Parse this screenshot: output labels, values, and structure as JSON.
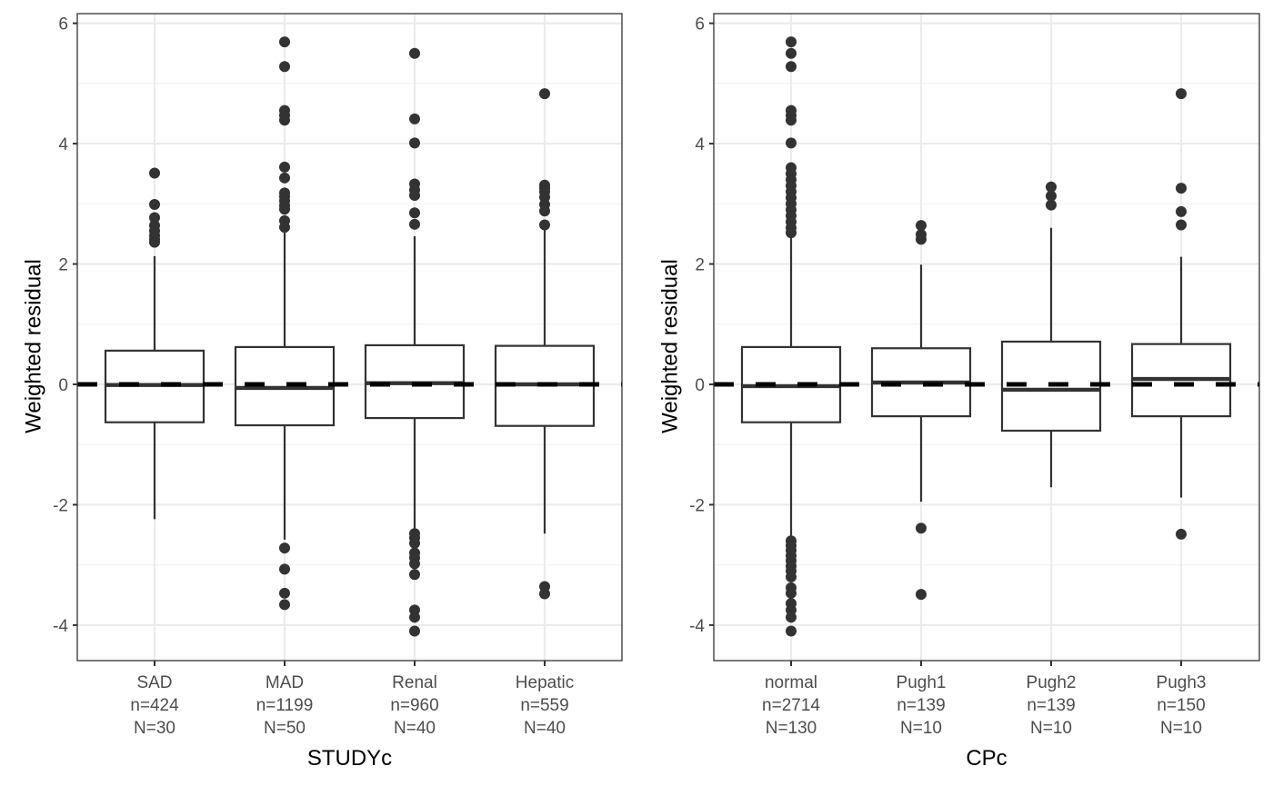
{
  "chart_data": [
    {
      "type": "box",
      "title": "",
      "xlabel": "STUDYc",
      "ylabel": "Weighted residual",
      "ylim": [
        -4.59,
        6.16
      ],
      "yticks": [
        -4,
        -2,
        0,
        2,
        4,
        6
      ],
      "ytick_labels": [
        "-4",
        "-2",
        "0",
        "2",
        "4",
        "6"
      ],
      "grid": true,
      "reference_line": {
        "y": 0,
        "style": "dashed"
      },
      "categories": [
        {
          "label": "SAD",
          "n_label": "n=424",
          "N_label": "N=30",
          "q1": -0.63,
          "median": -0.01,
          "q3": 0.56,
          "whisker_low": -2.24,
          "whisker_high": 2.13,
          "outliers": [
            3.51,
            2.99,
            2.77,
            2.64,
            2.55,
            2.47,
            2.41,
            2.36
          ]
        },
        {
          "label": "MAD",
          "n_label": "n=1199",
          "N_label": "N=50",
          "q1": -0.68,
          "median": -0.06,
          "q3": 0.62,
          "whisker_low": -2.58,
          "whisker_high": 2.53,
          "outliers": [
            5.69,
            5.28,
            4.55,
            4.47,
            4.39,
            3.61,
            3.43,
            3.18,
            3.12,
            3.05,
            2.97,
            2.91,
            2.72,
            2.61,
            -2.72,
            -3.07,
            -3.47,
            -3.66
          ]
        },
        {
          "label": "Renal",
          "n_label": "n=960",
          "N_label": "N=40",
          "q1": -0.56,
          "median": 0.02,
          "q3": 0.65,
          "whisker_low": -2.44,
          "whisker_high": 2.46,
          "outliers": [
            5.5,
            4.41,
            4.01,
            3.33,
            3.23,
            3.14,
            2.85,
            2.66,
            -2.48,
            -2.55,
            -2.64,
            -2.8,
            -2.88,
            -2.98,
            -3.16,
            -3.75,
            -3.87,
            -4.1
          ]
        },
        {
          "label": "Hepatic",
          "n_label": "n=559",
          "N_label": "N=40",
          "q1": -0.69,
          "median": 0.0,
          "q3": 0.64,
          "whisker_low": -2.48,
          "whisker_high": 2.6,
          "outliers": [
            4.83,
            3.31,
            3.26,
            3.2,
            3.11,
            2.99,
            2.88,
            2.65,
            -3.36,
            -3.48
          ]
        }
      ]
    },
    {
      "type": "box",
      "title": "",
      "xlabel": "CPc",
      "ylabel": "Weighted residual",
      "ylim": [
        -4.59,
        6.16
      ],
      "yticks": [
        -4,
        -2,
        0,
        2,
        4,
        6
      ],
      "ytick_labels": [
        "-4",
        "-2",
        "0",
        "2",
        "4",
        "6"
      ],
      "grid": true,
      "reference_line": {
        "y": 0,
        "style": "dashed"
      },
      "categories": [
        {
          "label": "normal",
          "n_label": "n=2714",
          "N_label": "N=130",
          "q1": -0.63,
          "median": -0.03,
          "q3": 0.62,
          "whisker_low": -2.55,
          "whisker_high": 2.52,
          "outliers": [
            5.69,
            5.5,
            5.28,
            4.55,
            4.47,
            4.39,
            4.01,
            3.6,
            3.5,
            3.4,
            3.3,
            3.2,
            3.1,
            3.0,
            2.9,
            2.8,
            2.7,
            2.6,
            2.52,
            -2.6,
            -2.68,
            -2.76,
            -2.85,
            -2.93,
            -3.02,
            -3.1,
            -3.2,
            -3.38,
            -3.47,
            -3.64,
            -3.75,
            -3.87,
            -4.1
          ]
        },
        {
          "label": "Pugh1",
          "n_label": "n=139",
          "N_label": "N=10",
          "q1": -0.53,
          "median": 0.03,
          "q3": 0.6,
          "whisker_low": -1.95,
          "whisker_high": 1.99,
          "outliers": [
            2.64,
            2.49,
            2.41,
            -2.39,
            -3.49
          ]
        },
        {
          "label": "Pugh2",
          "n_label": "n=139",
          "N_label": "N=10",
          "q1": -0.77,
          "median": -0.09,
          "q3": 0.71,
          "whisker_low": -1.71,
          "whisker_high": 2.6,
          "outliers": [
            3.28,
            3.13,
            2.98
          ]
        },
        {
          "label": "Pugh3",
          "n_label": "n=150",
          "N_label": "N=10",
          "q1": -0.53,
          "median": 0.09,
          "q3": 0.67,
          "whisker_low": -1.88,
          "whisker_high": 2.12,
          "outliers": [
            4.83,
            3.26,
            2.87,
            2.65,
            -2.49
          ]
        }
      ]
    }
  ],
  "colors": {
    "box_stroke": "#333333",
    "outlier": "#333333",
    "grid_major": "#ebebeb",
    "grid_minor": "#f2f2f2",
    "panel_border": "#333333",
    "reference_line": "#000000"
  }
}
